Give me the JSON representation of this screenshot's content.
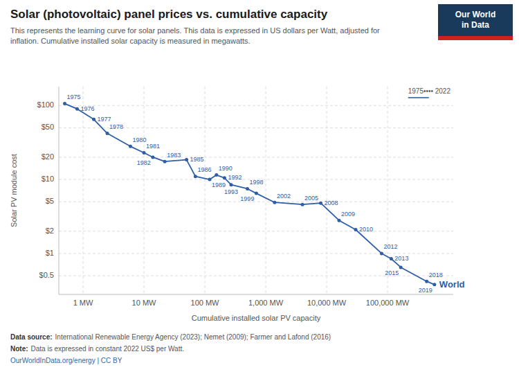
{
  "chart_data": {
    "type": "line",
    "title": "Solar (photovoltaic) panel prices vs. cumulative capacity",
    "subtitle": "This represents the learning curve for solar panels. This data is expressed in US dollars per Watt, adjusted for\ninflation. Cumulative installed solar capacity is measured in megawatts.",
    "xlabel": "Cumulative installed solar PV capacity",
    "ylabel": "Solar PV module cost",
    "x": [
      0.5,
      0.8,
      1.5,
      2.5,
      6.0,
      10.0,
      14.0,
      22.0,
      50.0,
      70.0,
      120.0,
      155.0,
      210.0,
      270.0,
      500.0,
      700.0,
      1400.0,
      4000.0,
      8000.0,
      16000.0,
      30000.0,
      80000.0,
      115000.0,
      165000.0,
      440000.0,
      590000.0
    ],
    "series": [
      {
        "name": "1975•••• 2022",
        "color": "#2D5EA6",
        "marker": "circle",
        "values": [
          106.0,
          90.0,
          65.0,
          42.0,
          28.0,
          23.0,
          20.0,
          17.5,
          18.5,
          11.0,
          10.0,
          11.5,
          10.5,
          8.5,
          7.5,
          6.5,
          4.9,
          4.6,
          4.8,
          2.8,
          2.1,
          1.0,
          0.85,
          0.65,
          0.42,
          0.38
        ],
        "years": [
          1975,
          1976,
          1977,
          1978,
          1980,
          1981,
          1982,
          1983,
          1985,
          1986,
          1989,
          1990,
          1992,
          1993,
          1998,
          1999,
          2002,
          2005,
          2008,
          2009,
          2010,
          2012,
          2013,
          2015,
          2018,
          2019
        ]
      }
    ],
    "xlim": [
      0.4,
      1200000
    ],
    "ylim": [
      0.28,
      180
    ],
    "xticks": [
      {
        "value": 1,
        "label": "1 MW"
      },
      {
        "value": 10,
        "label": "10 MW"
      },
      {
        "value": 100,
        "label": "100 MW"
      },
      {
        "value": 1000,
        "label": "1,000 MW"
      },
      {
        "value": 10000,
        "label": "10,000 MW"
      },
      {
        "value": 100000,
        "label": "100,000 MW"
      }
    ],
    "yticks": [
      {
        "value": 0.5,
        "label": "$0.5"
      },
      {
        "value": 1,
        "label": "$1"
      },
      {
        "value": 2,
        "label": "$2"
      },
      {
        "value": 5,
        "label": "$5"
      },
      {
        "value": 10,
        "label": "$10"
      },
      {
        "value": 20,
        "label": "$20"
      },
      {
        "value": 50,
        "label": "$50"
      },
      {
        "value": 100,
        "label": "$100"
      }
    ],
    "log": true,
    "grid": true,
    "legend": "upper right",
    "annotations": [
      "World"
    ],
    "source": {
      "label": "Data source:",
      "text": "International Renewable Energy Agency (2023); Nemet (2009); Farmer and Lafond (2016)"
    },
    "note": {
      "label": "Note:",
      "text": "Data is expressed in constant 2022 US$ per Watt."
    },
    "url": "OurWorldInData.org/energy | CC BY",
    "logo": [
      "Our World",
      "in Data"
    ]
  }
}
